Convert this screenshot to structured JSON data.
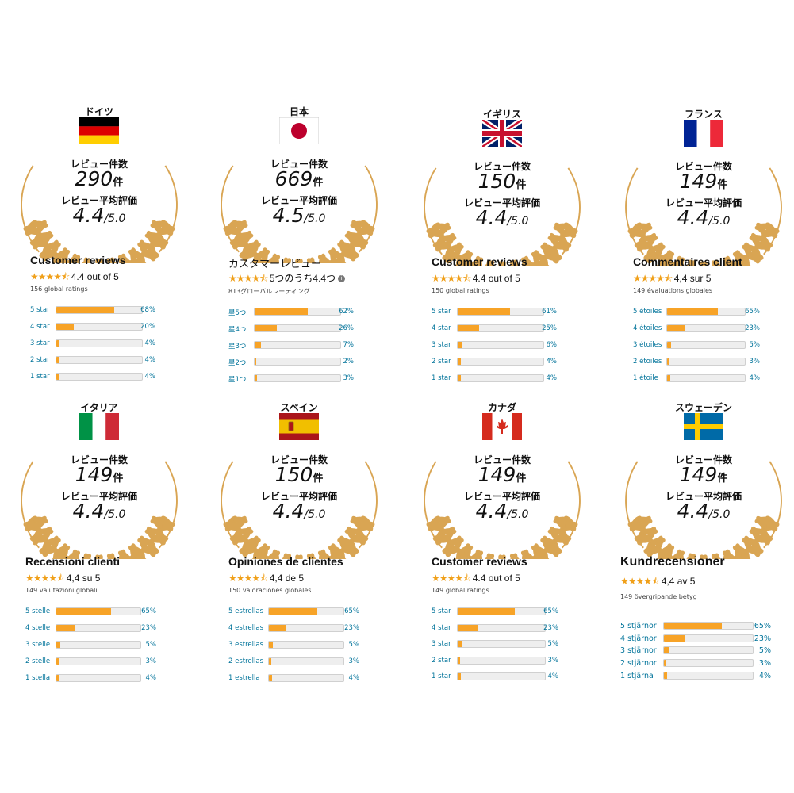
{
  "colors": {
    "gold": "#d9a553",
    "star": "#f0a01a",
    "bar_fill": "#f7a327",
    "link": "#00739a"
  },
  "common": {
    "count_label": "レビュー件数",
    "avg_label": "レビュー平均評価",
    "unit": "件",
    "denominator": "/5.0"
  },
  "cards": [
    {
      "country": "ドイツ",
      "flag": "flag-germany-icon",
      "count": "290",
      "avg": "4.4",
      "title": "Customer reviews",
      "stars_text": "4.4 out of 5",
      "global": "156 global ratings",
      "info": false,
      "rows": [
        {
          "label": "5 star",
          "pct": "68%",
          "value": 68
        },
        {
          "label": "4 star",
          "pct": "20%",
          "value": 20
        },
        {
          "label": "3 star",
          "pct": "4%",
          "value": 4
        },
        {
          "label": "2 star",
          "pct": "4%",
          "value": 4
        },
        {
          "label": "1 star",
          "pct": "4%",
          "value": 4
        }
      ]
    },
    {
      "country": "日本",
      "flag": "flag-japan-icon",
      "count": "669",
      "avg": "4.5",
      "title": "カスタマーレビュー",
      "stars_text": "5つのうち4.4つ",
      "global": "813グローバルレーティング",
      "info": true,
      "rows": [
        {
          "label": "星5つ",
          "pct": "62%",
          "value": 62
        },
        {
          "label": "星4つ",
          "pct": "26%",
          "value": 26
        },
        {
          "label": "星3つ",
          "pct": "7%",
          "value": 7
        },
        {
          "label": "星2つ",
          "pct": "2%",
          "value": 2
        },
        {
          "label": "星1つ",
          "pct": "3%",
          "value": 3
        }
      ]
    },
    {
      "country": "イギリス",
      "flag": "flag-uk-icon",
      "count": "150",
      "avg": "4.4",
      "title": "Customer reviews",
      "stars_text": "4.4 out of 5",
      "global": "150 global ratings",
      "info": false,
      "rows": [
        {
          "label": "5 star",
          "pct": "61%",
          "value": 61
        },
        {
          "label": "4 star",
          "pct": "25%",
          "value": 25
        },
        {
          "label": "3 star",
          "pct": "6%",
          "value": 6
        },
        {
          "label": "2 star",
          "pct": "4%",
          "value": 4
        },
        {
          "label": "1 star",
          "pct": "4%",
          "value": 4
        }
      ]
    },
    {
      "country": "フランス",
      "flag": "flag-france-icon",
      "count": "149",
      "avg": "4.4",
      "title": "Commentaires client",
      "stars_text": "4,4 sur 5",
      "global": "149 évaluations globales",
      "info": false,
      "rows": [
        {
          "label": "5 étoiles",
          "pct": "65%",
          "value": 65
        },
        {
          "label": "4 étoiles",
          "pct": "23%",
          "value": 23
        },
        {
          "label": "3 étoiles",
          "pct": "5%",
          "value": 5
        },
        {
          "label": "2 étoiles",
          "pct": "3%",
          "value": 3
        },
        {
          "label": "1 étoile",
          "pct": "4%",
          "value": 4
        }
      ]
    },
    {
      "country": "イタリア",
      "flag": "flag-italy-icon",
      "count": "149",
      "avg": "4.4",
      "title": "Recensioni clienti",
      "stars_text": "4,4 su 5",
      "global": "149 valutazioni globali",
      "info": false,
      "rows": [
        {
          "label": "5 stelle",
          "pct": "65%",
          "value": 65
        },
        {
          "label": "4 stelle",
          "pct": "23%",
          "value": 23
        },
        {
          "label": "3 stelle",
          "pct": "5%",
          "value": 5
        },
        {
          "label": "2 stelle",
          "pct": "3%",
          "value": 3
        },
        {
          "label": "1 stella",
          "pct": "4%",
          "value": 4
        }
      ]
    },
    {
      "country": "スペイン",
      "flag": "flag-spain-icon",
      "count": "150",
      "avg": "4.4",
      "title": "Opiniones de clientes",
      "stars_text": "4,4 de 5",
      "global": "150 valoraciones globales",
      "info": false,
      "rows": [
        {
          "label": "5 estrellas",
          "pct": "65%",
          "value": 65
        },
        {
          "label": "4 estrellas",
          "pct": "23%",
          "value": 23
        },
        {
          "label": "3 estrellas",
          "pct": "5%",
          "value": 5
        },
        {
          "label": "2 estrellas",
          "pct": "3%",
          "value": 3
        },
        {
          "label": "1 estrella",
          "pct": "4%",
          "value": 4
        }
      ]
    },
    {
      "country": "カナダ",
      "flag": "flag-canada-icon",
      "count": "149",
      "avg": "4.4",
      "title": "Customer reviews",
      "stars_text": "4.4 out of 5",
      "global": "149 global ratings",
      "info": false,
      "rows": [
        {
          "label": "5 star",
          "pct": "65%",
          "value": 65
        },
        {
          "label": "4 star",
          "pct": "23%",
          "value": 23
        },
        {
          "label": "3 star",
          "pct": "5%",
          "value": 5
        },
        {
          "label": "2 star",
          "pct": "3%",
          "value": 3
        },
        {
          "label": "1 star",
          "pct": "4%",
          "value": 4
        }
      ]
    },
    {
      "country": "スウェーデン",
      "flag": "flag-sweden-icon",
      "count": "149",
      "avg": "4.4",
      "title": "Kundrecensioner",
      "stars_text": "4,4 av 5",
      "global": "149 övergripande betyg",
      "info": false,
      "rows": [
        {
          "label": "5 stjärnor",
          "pct": "65%",
          "value": 65
        },
        {
          "label": "4 stjärnor",
          "pct": "23%",
          "value": 23
        },
        {
          "label": "3 stjärnor",
          "pct": "5%",
          "value": 5
        },
        {
          "label": "2 stjärnor",
          "pct": "3%",
          "value": 3
        },
        {
          "label": "1 stjärna",
          "pct": "4%",
          "value": 4
        }
      ]
    }
  ]
}
